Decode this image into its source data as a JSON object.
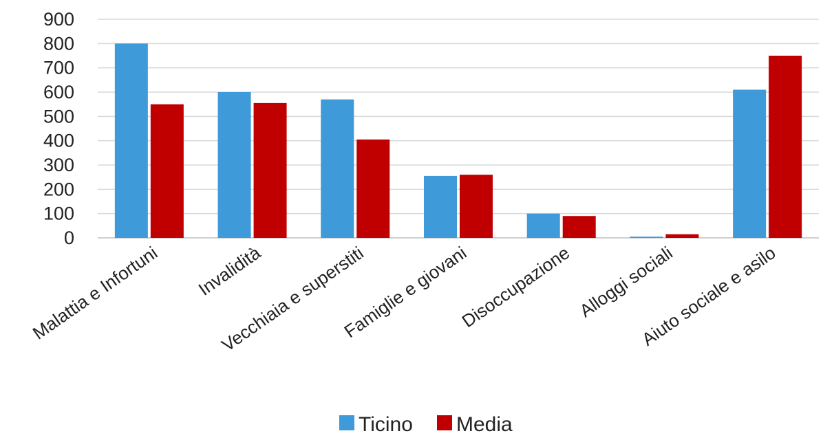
{
  "chart_data": {
    "type": "bar",
    "categories": [
      "Malattia e Infortuni",
      "Invalidità",
      "Vecchiaia e superstiti",
      "Famiglie e giovani",
      "Disoccupazione",
      "Alloggi sociali",
      "Aiuto sociale e asilo"
    ],
    "series": [
      {
        "name": "Ticino",
        "color": "#3e9ad9",
        "values": [
          800,
          600,
          570,
          255,
          100,
          5,
          610
        ]
      },
      {
        "name": "Media",
        "color": "#c00000",
        "values": [
          550,
          555,
          405,
          260,
          90,
          15,
          750
        ]
      }
    ],
    "y_ticks": [
      "0",
      "100",
      "200",
      "300",
      "400",
      "500",
      "600",
      "700",
      "800",
      "900"
    ],
    "ylim": [
      0,
      900
    ],
    "grid": true,
    "legend_position": "bottom"
  }
}
